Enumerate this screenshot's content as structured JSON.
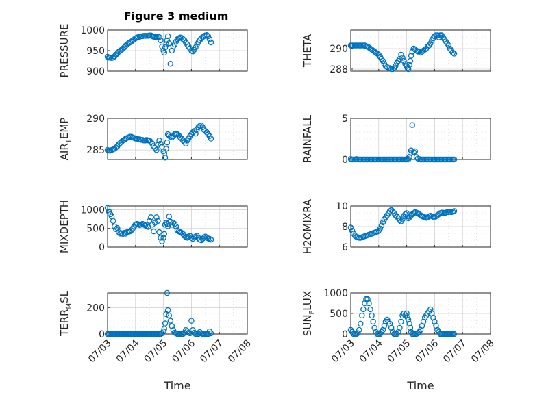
{
  "figure": {
    "title": "Figure 3 medium"
  },
  "style": {
    "marker_color": "#0072BD",
    "axis_color": "#262626",
    "grid_color": "#d0d0d0"
  },
  "chart_data": [
    {
      "type": "scatter",
      "ylabel": "PRESSURE",
      "ylim": [
        900,
        1000
      ],
      "yticks": [
        "900",
        "950",
        "1000"
      ],
      "xlim": [
        0,
        5
      ],
      "grid": true,
      "x": [
        0,
        0.05,
        0.1,
        0.15,
        0.2,
        0.25,
        0.3,
        0.35,
        0.4,
        0.45,
        0.5,
        0.55,
        0.6,
        0.65,
        0.7,
        0.75,
        0.8,
        0.85,
        0.9,
        0.95,
        1.0,
        1.05,
        1.1,
        1.15,
        1.2,
        1.25,
        1.3,
        1.35,
        1.4,
        1.45,
        1.5,
        1.55,
        1.6,
        1.65,
        1.7,
        1.75,
        1.8,
        1.85,
        1.9,
        1.95,
        2.0,
        2.03,
        2.06,
        2.1,
        2.13,
        2.16,
        2.2,
        2.25,
        2.3,
        2.35,
        2.4,
        2.45,
        2.5,
        2.55,
        2.6,
        2.65,
        2.7,
        2.75,
        2.8,
        2.85,
        2.9,
        2.95,
        3.0,
        3.05,
        3.1,
        3.15,
        3.2,
        3.25,
        3.3,
        3.35,
        3.4,
        3.45,
        3.5,
        3.55,
        3.6,
        3.65,
        3.7
      ],
      "y": [
        935,
        933,
        933,
        932,
        933,
        936,
        940,
        943,
        947,
        950,
        952,
        955,
        958,
        962,
        965,
        968,
        970,
        972,
        975,
        977,
        980,
        982,
        983,
        984,
        985,
        985,
        986,
        986,
        986,
        986,
        987,
        987,
        985,
        984,
        983,
        983,
        984,
        983,
        975,
        960,
        950,
        945,
        958,
        965,
        975,
        985,
        968,
        918,
        950,
        960,
        965,
        972,
        978,
        980,
        982,
        981,
        978,
        975,
        970,
        965,
        960,
        955,
        950,
        948,
        952,
        958,
        965,
        970,
        975,
        980,
        983,
        985,
        987,
        988,
        985,
        978,
        970
      ]
    },
    {
      "type": "scatter",
      "ylabel": "THETA",
      "ylim": [
        287.8,
        291.8
      ],
      "yticks": [
        "288",
        "290"
      ],
      "xlim": [
        0,
        5
      ],
      "grid": true,
      "x": [
        0,
        0.05,
        0.1,
        0.15,
        0.2,
        0.25,
        0.3,
        0.35,
        0.4,
        0.45,
        0.5,
        0.55,
        0.6,
        0.65,
        0.7,
        0.75,
        0.8,
        0.85,
        0.9,
        0.95,
        1.0,
        1.05,
        1.1,
        1.15,
        1.2,
        1.25,
        1.3,
        1.35,
        1.4,
        1.45,
        1.5,
        1.55,
        1.6,
        1.65,
        1.7,
        1.75,
        1.8,
        1.85,
        1.9,
        1.95,
        2.0,
        2.03,
        2.06,
        2.1,
        2.13,
        2.16,
        2.2,
        2.25,
        2.3,
        2.35,
        2.4,
        2.45,
        2.5,
        2.55,
        2.6,
        2.65,
        2.7,
        2.75,
        2.8,
        2.85,
        2.9,
        2.95,
        3.0,
        3.05,
        3.1,
        3.15,
        3.2,
        3.25,
        3.3,
        3.35,
        3.4,
        3.45,
        3.5,
        3.55,
        3.6,
        3.65,
        3.7
      ],
      "y": [
        290.3,
        290.3,
        290.3,
        290.3,
        290.3,
        290.3,
        290.3,
        290.3,
        290.3,
        290.3,
        290.3,
        290.2,
        290.2,
        290.1,
        290.0,
        289.9,
        289.8,
        289.7,
        289.6,
        289.5,
        289.4,
        289.2,
        289.0,
        288.8,
        288.5,
        288.3,
        288.2,
        288.1,
        288.1,
        288.0,
        288.0,
        288.1,
        288.3,
        288.6,
        288.8,
        289.0,
        289.4,
        289.1,
        288.8,
        288.5,
        288.3,
        288.1,
        288.0,
        288.4,
        288.8,
        289.3,
        289.7,
        290.0,
        289.9,
        289.8,
        289.7,
        289.7,
        289.6,
        289.7,
        289.8,
        289.9,
        290.0,
        290.2,
        290.3,
        290.5,
        290.8,
        291.0,
        291.2,
        291.3,
        291.3,
        291.1,
        291.3,
        291.3,
        291.1,
        290.9,
        290.7,
        290.5,
        290.3,
        290.0,
        289.8,
        289.6,
        289.5
      ]
    },
    {
      "type": "scatter",
      "ylabel": "AIR_TEMP",
      "ylim": [
        283.5,
        290
      ],
      "yticks": [
        "285",
        "290"
      ],
      "xlim": [
        0,
        5
      ],
      "grid": true,
      "x": [
        0,
        0.05,
        0.1,
        0.15,
        0.2,
        0.25,
        0.3,
        0.35,
        0.4,
        0.45,
        0.5,
        0.55,
        0.6,
        0.65,
        0.7,
        0.75,
        0.8,
        0.85,
        0.9,
        0.95,
        1.0,
        1.05,
        1.1,
        1.15,
        1.2,
        1.25,
        1.3,
        1.35,
        1.4,
        1.45,
        1.5,
        1.55,
        1.6,
        1.65,
        1.7,
        1.75,
        1.8,
        1.85,
        1.9,
        1.95,
        2.0,
        2.03,
        2.06,
        2.1,
        2.13,
        2.16,
        2.2,
        2.25,
        2.3,
        2.35,
        2.4,
        2.45,
        2.5,
        2.55,
        2.6,
        2.65,
        2.7,
        2.75,
        2.8,
        2.85,
        2.9,
        2.95,
        3.0,
        3.05,
        3.1,
        3.15,
        3.2,
        3.25,
        3.3,
        3.35,
        3.4,
        3.45,
        3.5,
        3.55,
        3.6,
        3.65,
        3.7
      ],
      "y": [
        285.0,
        284.9,
        284.9,
        285.0,
        285.1,
        285.2,
        285.4,
        285.6,
        285.9,
        286.1,
        286.3,
        286.5,
        286.6,
        286.8,
        286.9,
        287.0,
        287.1,
        287.1,
        287.0,
        286.9,
        286.8,
        286.8,
        286.7,
        286.7,
        286.6,
        286.6,
        286.5,
        286.5,
        286.6,
        286.5,
        286.5,
        286.3,
        286.0,
        285.6,
        285.3,
        285.0,
        285.8,
        286.5,
        286.0,
        285.5,
        284.8,
        284.5,
        283.8,
        285.2,
        286.2,
        287.5,
        287.3,
        287.1,
        287.0,
        287.2,
        287.5,
        287.6,
        287.5,
        287.3,
        287.0,
        286.8,
        286.5,
        286.3,
        286.0,
        286.5,
        286.8,
        287.2,
        287.5,
        287.8,
        288.0,
        287.6,
        288.3,
        288.6,
        288.8,
        288.9,
        288.6,
        288.2,
        288.0,
        287.8,
        287.5,
        287.2,
        286.8
      ]
    },
    {
      "type": "scatter",
      "ylabel": "RAINFALL",
      "ylim": [
        0,
        5
      ],
      "yticks": [
        "0",
        "5"
      ],
      "xlim": [
        0,
        5
      ],
      "grid": true,
      "x": [
        0,
        0.05,
        0.1,
        0.15,
        0.2,
        0.25,
        0.3,
        0.35,
        0.4,
        0.45,
        0.5,
        0.55,
        0.6,
        0.65,
        0.7,
        0.75,
        0.8,
        0.85,
        0.9,
        0.95,
        1.0,
        1.05,
        1.1,
        1.15,
        1.2,
        1.25,
        1.3,
        1.35,
        1.4,
        1.45,
        1.5,
        1.55,
        1.6,
        1.65,
        1.7,
        1.75,
        1.8,
        1.85,
        1.9,
        1.95,
        2.0,
        2.03,
        2.06,
        2.1,
        2.13,
        2.16,
        2.2,
        2.25,
        2.3,
        2.35,
        2.4,
        2.45,
        2.5,
        2.55,
        2.6,
        2.65,
        2.7,
        2.75,
        2.8,
        2.85,
        2.9,
        2.95,
        3.0,
        3.05,
        3.1,
        3.15,
        3.2,
        3.25,
        3.3,
        3.35,
        3.4,
        3.45,
        3.5,
        3.55,
        3.6,
        3.65,
        3.7
      ],
      "y": [
        0.05,
        0,
        0,
        0,
        0.05,
        0,
        0,
        0,
        0,
        0,
        0,
        0,
        0,
        0,
        0,
        0,
        0,
        0,
        0,
        0,
        0,
        0,
        0,
        0,
        0,
        0,
        0,
        0,
        0,
        0,
        0,
        0,
        0,
        0,
        0,
        0,
        0,
        0,
        0,
        0,
        0,
        0.1,
        0,
        0.3,
        0.8,
        1.1,
        4.2,
        0.9,
        1.0,
        0.3,
        0.1,
        0.05,
        0,
        0,
        0,
        0,
        0,
        0,
        0,
        0,
        0,
        0,
        0,
        0,
        0,
        0,
        0,
        0,
        0,
        0,
        0,
        0,
        0,
        0,
        0,
        0,
        0
      ]
    },
    {
      "type": "scatter",
      "ylabel": "MIXDEPTH",
      "ylim": [
        0,
        1100
      ],
      "yticks": [
        "0",
        "500",
        "1000"
      ],
      "xlim": [
        0,
        5
      ],
      "grid": true,
      "x": [
        0,
        0.05,
        0.1,
        0.15,
        0.2,
        0.25,
        0.3,
        0.35,
        0.4,
        0.45,
        0.5,
        0.55,
        0.6,
        0.65,
        0.7,
        0.75,
        0.8,
        0.85,
        0.9,
        0.95,
        1.0,
        1.05,
        1.1,
        1.15,
        1.2,
        1.25,
        1.3,
        1.35,
        1.4,
        1.45,
        1.5,
        1.55,
        1.6,
        1.65,
        1.7,
        1.75,
        1.8,
        1.85,
        1.9,
        1.95,
        2.0,
        2.03,
        2.06,
        2.1,
        2.13,
        2.16,
        2.2,
        2.25,
        2.3,
        2.35,
        2.4,
        2.45,
        2.5,
        2.55,
        2.6,
        2.65,
        2.7,
        2.75,
        2.8,
        2.85,
        2.9,
        2.95,
        3.0,
        3.05,
        3.1,
        3.15,
        3.2,
        3.25,
        3.3,
        3.35,
        3.4,
        3.45,
        3.5,
        3.55,
        3.6,
        3.65,
        3.7
      ],
      "y": [
        1050,
        950,
        880,
        820,
        700,
        550,
        480,
        510,
        400,
        360,
        370,
        350,
        380,
        360,
        400,
        410,
        420,
        450,
        500,
        550,
        600,
        620,
        610,
        590,
        600,
        620,
        600,
        580,
        560,
        540,
        700,
        800,
        600,
        420,
        650,
        800,
        700,
        400,
        250,
        150,
        250,
        350,
        600,
        650,
        620,
        560,
        820,
        680,
        600,
        650,
        620,
        550,
        450,
        420,
        400,
        380,
        350,
        300,
        270,
        250,
        280,
        300,
        250,
        220,
        260,
        280,
        300,
        250,
        200,
        180,
        220,
        250,
        280,
        250,
        230,
        220,
        200
      ]
    },
    {
      "type": "scatter",
      "ylabel": "H2OMIXRA",
      "ylim": [
        6,
        10
      ],
      "yticks": [
        "6",
        "8",
        "10"
      ],
      "xlim": [
        0,
        5
      ],
      "grid": true,
      "x": [
        0,
        0.05,
        0.1,
        0.15,
        0.2,
        0.25,
        0.3,
        0.35,
        0.4,
        0.45,
        0.5,
        0.55,
        0.6,
        0.65,
        0.7,
        0.75,
        0.8,
        0.85,
        0.9,
        0.95,
        1.0,
        1.05,
        1.1,
        1.15,
        1.2,
        1.25,
        1.3,
        1.35,
        1.4,
        1.45,
        1.5,
        1.55,
        1.6,
        1.65,
        1.7,
        1.75,
        1.8,
        1.85,
        1.9,
        1.95,
        2.0,
        2.03,
        2.06,
        2.1,
        2.13,
        2.16,
        2.2,
        2.25,
        2.3,
        2.35,
        2.4,
        2.45,
        2.5,
        2.55,
        2.6,
        2.65,
        2.7,
        2.75,
        2.8,
        2.85,
        2.9,
        2.95,
        3.0,
        3.05,
        3.1,
        3.15,
        3.2,
        3.25,
        3.3,
        3.35,
        3.4,
        3.45,
        3.5,
        3.55,
        3.6,
        3.65,
        3.7
      ],
      "y": [
        7.9,
        7.6,
        7.3,
        7.1,
        7.0,
        6.95,
        6.9,
        6.9,
        6.95,
        7.0,
        7.05,
        7.1,
        7.15,
        7.2,
        7.25,
        7.3,
        7.35,
        7.4,
        7.45,
        7.5,
        7.6,
        7.8,
        8.1,
        8.4,
        8.7,
        8.9,
        9.1,
        9.3,
        9.5,
        9.6,
        9.5,
        9.3,
        9.1,
        9.0,
        8.8,
        8.6,
        8.5,
        8.7,
        9.0,
        9.2,
        9.3,
        9.0,
        8.8,
        8.9,
        9.0,
        9.1,
        9.2,
        9.3,
        9.4,
        9.35,
        9.3,
        9.2,
        9.1,
        9.0,
        8.95,
        8.9,
        8.85,
        8.9,
        9.0,
        9.05,
        9.0,
        8.95,
        8.9,
        9.0,
        9.1,
        9.2,
        9.3,
        9.35,
        9.35,
        9.3,
        9.35,
        9.4,
        9.4,
        9.45,
        9.4,
        9.45,
        9.5
      ]
    },
    {
      "type": "scatter",
      "ylabel": "TERR_MSL",
      "ylim": [
        0,
        310
      ],
      "yticks": [
        "0",
        "200"
      ],
      "xlim": [
        0,
        5
      ],
      "grid": true,
      "x": [
        0,
        0.05,
        0.1,
        0.15,
        0.2,
        0.25,
        0.3,
        0.35,
        0.4,
        0.45,
        0.5,
        0.55,
        0.6,
        0.65,
        0.7,
        0.75,
        0.8,
        0.85,
        0.9,
        0.95,
        1.0,
        1.05,
        1.1,
        1.15,
        1.2,
        1.25,
        1.3,
        1.35,
        1.4,
        1.45,
        1.5,
        1.55,
        1.6,
        1.65,
        1.7,
        1.75,
        1.8,
        1.85,
        1.9,
        1.95,
        2.0,
        2.03,
        2.06,
        2.1,
        2.13,
        2.16,
        2.2,
        2.25,
        2.3,
        2.35,
        2.4,
        2.45,
        2.5,
        2.55,
        2.6,
        2.65,
        2.7,
        2.75,
        2.8,
        2.85,
        2.9,
        2.95,
        3.0,
        3.05,
        3.1,
        3.15,
        3.2,
        3.25,
        3.3,
        3.35,
        3.4,
        3.45,
        3.5,
        3.55,
        3.6,
        3.65,
        3.7
      ],
      "y": [
        0,
        0,
        0,
        0,
        0,
        0,
        0,
        0,
        0,
        0,
        0,
        0,
        0,
        0,
        0,
        0,
        0,
        0,
        0,
        0,
        0,
        0,
        0,
        0,
        0,
        0,
        0,
        0,
        0,
        0,
        0,
        0,
        0,
        0,
        0,
        0,
        0,
        0,
        0,
        5,
        20,
        40,
        80,
        150,
        310,
        180,
        140,
        100,
        60,
        30,
        10,
        5,
        0,
        0,
        0,
        0,
        0,
        10,
        30,
        20,
        10,
        5,
        100,
        30,
        10,
        0,
        0,
        0,
        15,
        5,
        0,
        0,
        0,
        0,
        0,
        20,
        5
      ]
    },
    {
      "type": "scatter",
      "ylabel": "SUN_FLUX",
      "ylim": [
        0,
        1000
      ],
      "yticks": [
        "0",
        "500",
        "1000"
      ],
      "xlim": [
        0,
        5
      ],
      "grid": true,
      "x": [
        0,
        0.05,
        0.1,
        0.15,
        0.2,
        0.25,
        0.3,
        0.35,
        0.4,
        0.45,
        0.5,
        0.55,
        0.6,
        0.65,
        0.7,
        0.75,
        0.8,
        0.85,
        0.9,
        0.95,
        1.0,
        1.05,
        1.1,
        1.15,
        1.2,
        1.25,
        1.3,
        1.35,
        1.4,
        1.45,
        1.5,
        1.55,
        1.6,
        1.65,
        1.7,
        1.75,
        1.8,
        1.85,
        1.9,
        1.95,
        2.0,
        2.03,
        2.06,
        2.1,
        2.13,
        2.16,
        2.2,
        2.25,
        2.3,
        2.35,
        2.4,
        2.45,
        2.5,
        2.55,
        2.6,
        2.65,
        2.7,
        2.75,
        2.8,
        2.85,
        2.9,
        2.95,
        3.0,
        3.05,
        3.1,
        3.15,
        3.2,
        3.25,
        3.3,
        3.35,
        3.4,
        3.45,
        3.5,
        3.55,
        3.6,
        3.65,
        3.7
      ],
      "y": [
        100,
        50,
        0,
        0,
        0,
        20,
        100,
        250,
        450,
        600,
        750,
        850,
        850,
        750,
        600,
        450,
        300,
        150,
        50,
        0,
        0,
        0,
        50,
        100,
        200,
        300,
        350,
        300,
        250,
        150,
        50,
        0,
        0,
        0,
        50,
        150,
        300,
        450,
        500,
        450,
        500,
        400,
        350,
        250,
        150,
        50,
        0,
        0,
        0,
        0,
        20,
        50,
        100,
        200,
        300,
        400,
        450,
        500,
        550,
        600,
        500,
        400,
        300,
        200,
        100,
        50,
        0,
        0,
        0,
        0,
        0,
        0,
        0,
        0,
        0,
        0,
        0
      ]
    }
  ],
  "axes_x": {
    "tick_labels": [
      "07/03",
      "07/04",
      "07/05",
      "07/06",
      "07/07",
      "07/08"
    ],
    "xlabel": "Time"
  }
}
